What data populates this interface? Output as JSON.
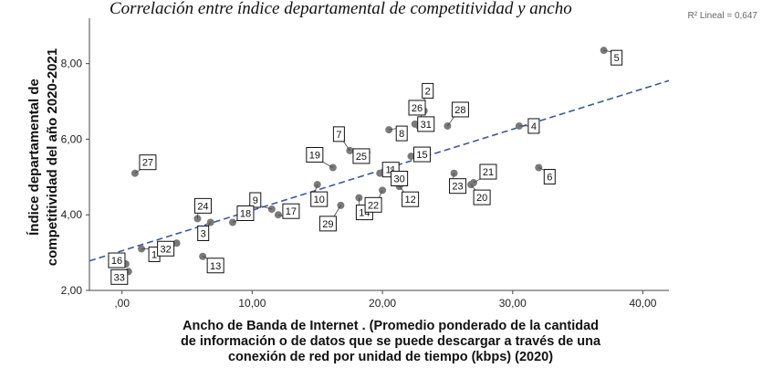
{
  "chart_data": {
    "type": "scatter",
    "title": "Correlación entre índice departamental de competitividad y ancho",
    "xlabel": [
      "Ancho de Banda de Internet . (Promedio ponderado de la cantidad",
      "de información o de datos que se puede descargar a través de una",
      "conexión de red por unidad de tiempo (kbps) (2020)"
    ],
    "ylabel": [
      "Índice departamental de",
      "competitividad del año 2020-2021"
    ],
    "xlim": [
      -2.5,
      42
    ],
    "ylim": [
      2.0,
      9.2
    ],
    "x_ticks": [
      ",00",
      "10,00",
      "20,00",
      "30,00",
      "40,00"
    ],
    "x_tick_values": [
      0,
      10,
      20,
      30,
      40
    ],
    "y_ticks": [
      "2,00",
      "4,00",
      "6,00",
      "8,00"
    ],
    "y_tick_values": [
      2,
      4,
      6,
      8
    ],
    "grid": false,
    "r2_label": "R² Lineal = 0,647",
    "fit_line": {
      "x": [
        -2.5,
        42
      ],
      "y": [
        2.78,
        7.55
      ]
    },
    "points": [
      {
        "label": "1",
        "x": 1.5,
        "y": 3.1
      },
      {
        "label": "2",
        "x": 23.2,
        "y": 6.75
      },
      {
        "label": "3",
        "x": 6.8,
        "y": 3.8
      },
      {
        "label": "4",
        "x": 30.5,
        "y": 6.35
      },
      {
        "label": "5",
        "x": 37.0,
        "y": 8.35
      },
      {
        "label": "6",
        "x": 32.0,
        "y": 5.25
      },
      {
        "label": "7",
        "x": 17.5,
        "y": 5.7
      },
      {
        "label": "8",
        "x": 20.5,
        "y": 6.25
      },
      {
        "label": "9",
        "x": 11.5,
        "y": 4.15
      },
      {
        "label": "10",
        "x": 15.0,
        "y": 4.8
      },
      {
        "label": "11",
        "x": 19.8,
        "y": 5.1
      },
      {
        "label": "12",
        "x": 21.3,
        "y": 4.75
      },
      {
        "label": "13",
        "x": 6.2,
        "y": 2.9
      },
      {
        "label": "14",
        "x": 18.2,
        "y": 4.45
      },
      {
        "label": "15",
        "x": 22.2,
        "y": 5.55
      },
      {
        "label": "16",
        "x": 0.3,
        "y": 2.7
      },
      {
        "label": "17",
        "x": 12.0,
        "y": 4.0
      },
      {
        "label": "18",
        "x": 8.5,
        "y": 3.8
      },
      {
        "label": "19",
        "x": 16.2,
        "y": 5.25
      },
      {
        "label": "20",
        "x": 26.8,
        "y": 4.8
      },
      {
        "label": "21",
        "x": 27.0,
        "y": 4.85
      },
      {
        "label": "22",
        "x": 20.0,
        "y": 4.65
      },
      {
        "label": "23",
        "x": 25.5,
        "y": 5.1
      },
      {
        "label": "24",
        "x": 5.8,
        "y": 3.9
      },
      {
        "label": "25",
        "x": 18.8,
        "y": 5.65
      },
      {
        "label": "26",
        "x": 22.8,
        "y": 6.35
      },
      {
        "label": "27",
        "x": 1.0,
        "y": 5.1
      },
      {
        "label": "28",
        "x": 25.0,
        "y": 6.35
      },
      {
        "label": "29",
        "x": 16.8,
        "y": 4.25
      },
      {
        "label": "30",
        "x": 20.6,
        "y": 5.25
      },
      {
        "label": "31",
        "x": 22.5,
        "y": 6.4
      },
      {
        "label": "32",
        "x": 4.2,
        "y": 3.25
      },
      {
        "label": "33",
        "x": 0.5,
        "y": 2.5
      }
    ]
  }
}
